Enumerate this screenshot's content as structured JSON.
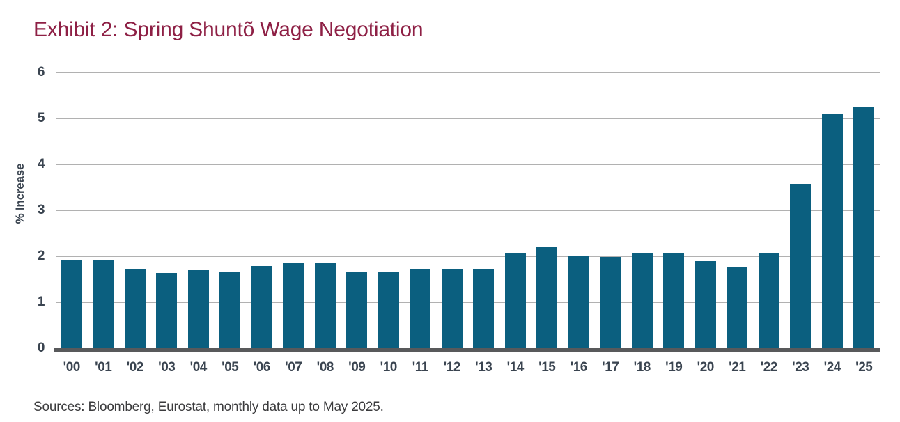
{
  "title": "Exhibit 2: Spring Shuntõ Wage Negotiation",
  "source_note": "Sources: Bloomberg, Eurostat, monthly data up to May 2025.",
  "colors": {
    "title_text": "#8e2045",
    "axis_text": "#3a4450",
    "gridline": "#b1b1b1",
    "axis_line": "#58595b",
    "bar": "#0b5f7f",
    "source_text": "#3b3b3d",
    "background": "#ffffff"
  },
  "chart_data": {
    "type": "bar",
    "title": "Exhibit 2: Spring Shuntõ Wage Negotiation",
    "xlabel": "",
    "ylabel": "% Increase",
    "ylim": [
      0,
      6
    ],
    "yticks": [
      0,
      1,
      2,
      3,
      4,
      5,
      6
    ],
    "grid": true,
    "legend": "none",
    "categories": [
      "'00",
      "'01",
      "'02",
      "'03",
      "'04",
      "'05",
      "'06",
      "'07",
      "'08",
      "'09",
      "'10",
      "'11",
      "'12",
      "'13",
      "'14",
      "'15",
      "'16",
      "'17",
      "'18",
      "'19",
      "'20",
      "'21",
      "'22",
      "'23",
      "'24",
      "'25"
    ],
    "values": [
      1.93,
      1.92,
      1.72,
      1.63,
      1.69,
      1.67,
      1.79,
      1.85,
      1.87,
      1.66,
      1.66,
      1.71,
      1.73,
      1.71,
      2.07,
      2.2,
      2.0,
      1.98,
      2.07,
      2.07,
      1.9,
      1.78,
      2.07,
      3.58,
      5.1,
      5.25
    ]
  }
}
